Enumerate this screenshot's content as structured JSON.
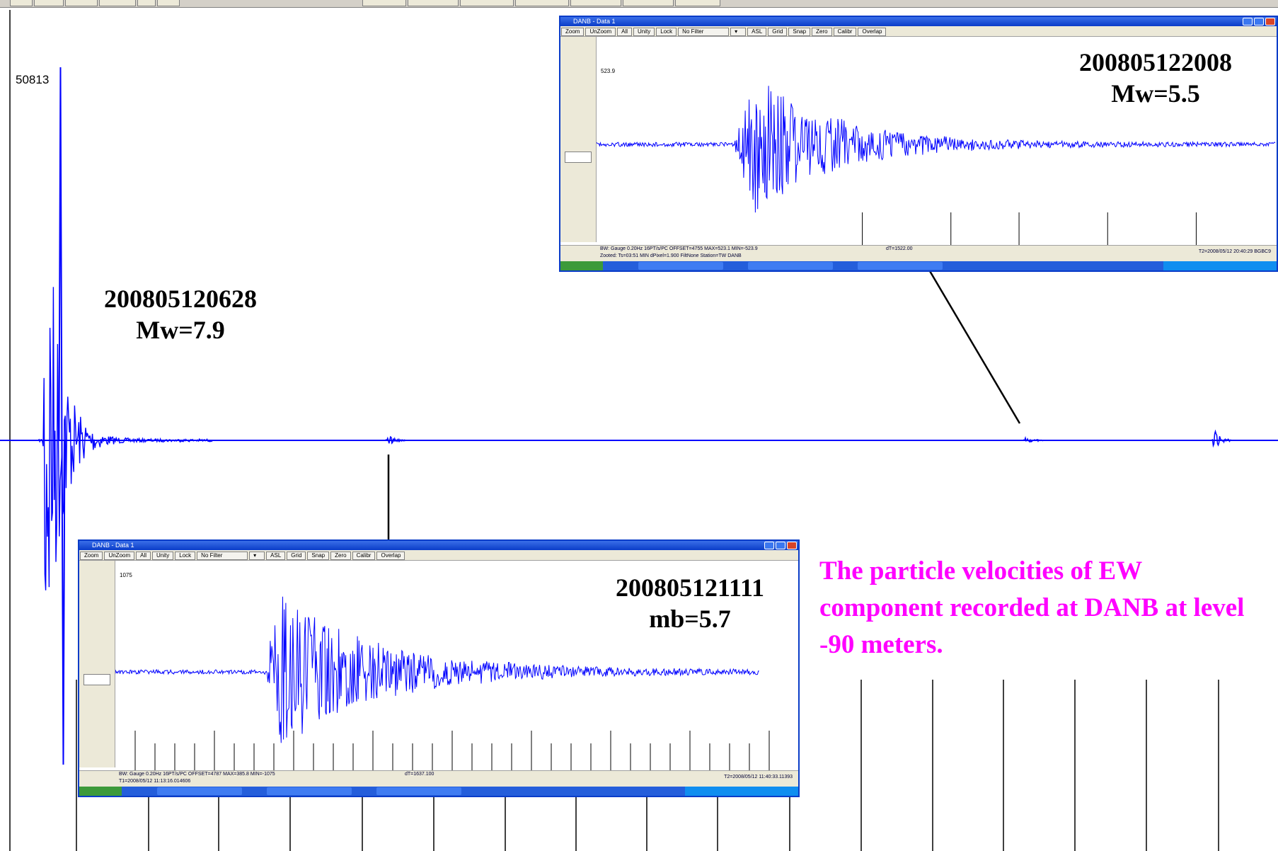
{
  "chart_data": {
    "type": "line",
    "description_visible": {
      "y_tick_label": "50813",
      "note": "The particle velocities of EW component recorded at DANB at level -90 meters."
    },
    "main_trace": {
      "color": "#0000ff",
      "events": [
        {
          "x_fraction": 0.044,
          "label_id": "200805120628",
          "amp_fraction": 1.0
        },
        {
          "x_fraction": 0.305,
          "label_id": "200805121111",
          "amp_fraction": 0.02
        },
        {
          "x_fraction": 0.804,
          "label_id": "200805122008",
          "amp_fraction": 0.01
        },
        {
          "x_fraction": 0.951,
          "label_id": "",
          "amp_fraction": 0.05
        }
      ]
    },
    "insets": [
      {
        "id": "200805122008",
        "magnitude": "Mw=5.5"
      },
      {
        "id": "200805121111",
        "magnitude": "mb=5.7"
      }
    ]
  },
  "labels": {
    "event_main": {
      "id": "200805120628",
      "mag": "Mw=7.9"
    },
    "event_top": {
      "id": "200805122008",
      "mag": "Mw=5.5"
    },
    "event_bottom": {
      "id": "200805121111",
      "mag": "mb=5.7"
    }
  },
  "y_tick": "50813",
  "note": "The particle velocities of EW component recorded at DANB at level -90 meters.",
  "mini_windows": {
    "top": {
      "title": "DANB - Data 1",
      "toolbar": [
        "Zoom",
        "UnZoom",
        "All",
        "Unity",
        "Lock",
        "No Filter",
        "",
        "ASL",
        "Grid",
        "Snap",
        "Zero",
        "Calibr",
        "Overlap"
      ],
      "ytick": "523.9",
      "status_line1": "BW: Gauge 0.20Hz 16PT/s/PC OFFSET=4755 MAX=523.1 MIN=-523.9",
      "status_line2": "Zooted: Ts=03:51 MIN  dPixel=1.900  FiltNone  Station=TW DANB",
      "status_mid": "dT=1522.00",
      "status_right": "T2=2008/05/12 20:40:29 BGBC9"
    },
    "bottom": {
      "title": "DANB - Data 1",
      "toolbar": [
        "Zoom",
        "UnZoom",
        "All",
        "Unity",
        "Lock",
        "No Filter",
        "",
        "ASL",
        "Grid",
        "Snap",
        "Zero",
        "Calibr",
        "Overlap"
      ],
      "ytick": "1075",
      "status_line1": "BW: Gauge 0.20Hz 16PT/s/PC OFFSET=4787 MAX=385.8 MIN=-1075",
      "status_line2": "T1=2008/05/12 11:13:16.014606",
      "status_mid": "dT=1637.100",
      "status_right": "T2=2008/05/12 11:40:33.11393"
    }
  }
}
